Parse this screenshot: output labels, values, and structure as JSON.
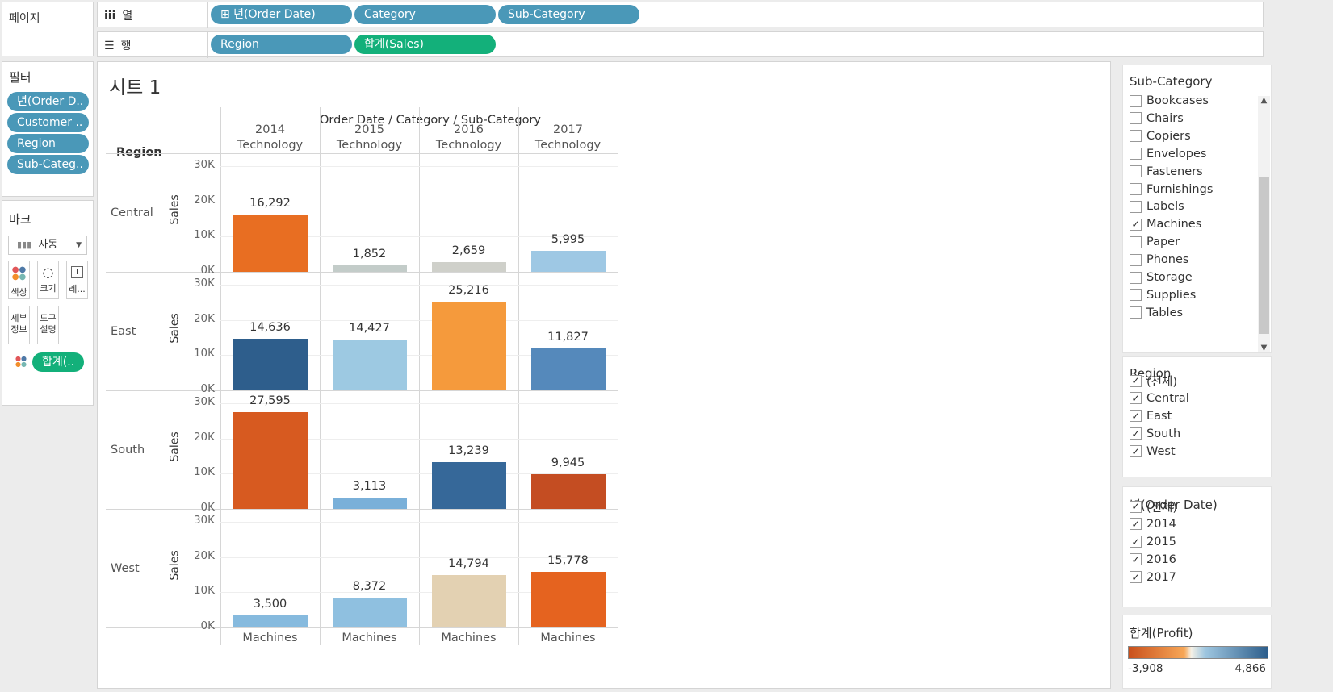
{
  "shelves": {
    "pages_label": "페이지",
    "columns_label": "열",
    "rows_label": "행",
    "columns_pills": [
      "⊞ 년(Order Date)",
      "Category",
      "Sub-Category"
    ],
    "rows_pills": [
      "Region",
      "합계(Sales)"
    ]
  },
  "filters": {
    "title": "필터",
    "items": [
      "년(Order D..",
      "Customer ..",
      "Region",
      "Sub-Categ.."
    ]
  },
  "marks": {
    "title": "마크",
    "type": "자동",
    "buttons": [
      "색상",
      "크기",
      "레..."
    ],
    "buttons2": [
      "세부 정보",
      "도구 설명"
    ],
    "pill": "합계(.."
  },
  "sheet": {
    "title": "시트 1",
    "column_header_title": "Order Date / Category / Sub-Category",
    "row_header_title": "Region",
    "x_footer": "Machines"
  },
  "chart_data": {
    "type": "bar",
    "title": "시트 1",
    "columns": [
      {
        "year": "2014",
        "category": "Technology"
      },
      {
        "year": "2015",
        "category": "Technology"
      },
      {
        "year": "2016",
        "category": "Technology"
      },
      {
        "year": "2017",
        "category": "Technology"
      }
    ],
    "sub_category": "Machines",
    "ylabel": "Sales",
    "ylim": [
      0,
      30000
    ],
    "y_ticks": [
      "30K",
      "20K",
      "10K",
      "0K"
    ],
    "regions": [
      {
        "name": "Central",
        "values": [
          16292,
          1852,
          2659,
          5995
        ],
        "labels": [
          "16,292",
          "1,852",
          "2,659",
          "5,995"
        ],
        "colors": [
          "#e86e22",
          "#c3ccc9",
          "#cfd0ca",
          "#9ec8e4"
        ]
      },
      {
        "name": "East",
        "values": [
          14636,
          14427,
          25216,
          11827
        ],
        "labels": [
          "14,636",
          "14,427",
          "25,216",
          "11,827"
        ],
        "colors": [
          "#2e5e8c",
          "#9dc9e2",
          "#f59a3c",
          "#5589bb"
        ]
      },
      {
        "name": "South",
        "values": [
          27595,
          3113,
          13239,
          9945
        ],
        "labels": [
          "27,595",
          "3,113",
          "13,239",
          "9,945"
        ],
        "colors": [
          "#d75a20",
          "#7ab0d9",
          "#366899",
          "#c44d22"
        ]
      },
      {
        "name": "West",
        "values": [
          3500,
          8372,
          14794,
          15778
        ],
        "labels": [
          "3,500",
          "8,372",
          "14,794",
          "15,778"
        ],
        "colors": [
          "#86bade",
          "#8fc0e0",
          "#e3d1b2",
          "#e5631f"
        ]
      }
    ]
  },
  "subcategory_filter": {
    "title": "Sub-Category",
    "items": [
      {
        "label": "Bookcases",
        "checked": false
      },
      {
        "label": "Chairs",
        "checked": false
      },
      {
        "label": "Copiers",
        "checked": false
      },
      {
        "label": "Envelopes",
        "checked": false
      },
      {
        "label": "Fasteners",
        "checked": false
      },
      {
        "label": "Furnishings",
        "checked": false
      },
      {
        "label": "Labels",
        "checked": false
      },
      {
        "label": "Machines",
        "checked": true
      },
      {
        "label": "Paper",
        "checked": false
      },
      {
        "label": "Phones",
        "checked": false
      },
      {
        "label": "Storage",
        "checked": false
      },
      {
        "label": "Supplies",
        "checked": false
      },
      {
        "label": "Tables",
        "checked": false
      }
    ]
  },
  "region_filter": {
    "title": "Region",
    "items": [
      {
        "label": "(전체)",
        "checked": true
      },
      {
        "label": "Central",
        "checked": true
      },
      {
        "label": "East",
        "checked": true
      },
      {
        "label": "South",
        "checked": true
      },
      {
        "label": "West",
        "checked": true
      }
    ]
  },
  "year_filter": {
    "title": "년(Order Date)",
    "items": [
      {
        "label": "(전체)",
        "checked": true
      },
      {
        "label": "2014",
        "checked": true
      },
      {
        "label": "2015",
        "checked": true
      },
      {
        "label": "2016",
        "checked": true
      },
      {
        "label": "2017",
        "checked": true
      }
    ]
  },
  "profit_legend": {
    "title": "합계(Profit)",
    "min_label": "-3,908",
    "max_label": "4,866",
    "colors": [
      "#c9501c",
      "#f7a757",
      "#f5f1e6",
      "#9ec6e0",
      "#2d5e8b"
    ]
  }
}
